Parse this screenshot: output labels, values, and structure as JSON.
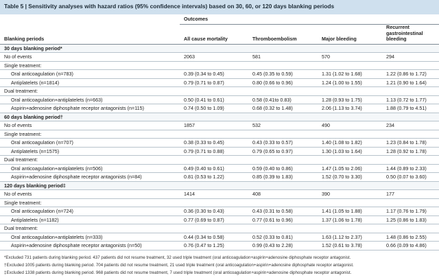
{
  "title": "Table 5 | Sensitivity analyses with hazard ratios (95% confidence intervals) based on 30, 60, or 120 days blanking periods",
  "header": {
    "outcomes_label": "Outcomes",
    "col0": "Blanking periods",
    "col1": "All cause mortality",
    "col2": "Thromboembolism",
    "col3": "Major bleeding",
    "col4": "Recurrent gastrointestinal bleeding"
  },
  "sections": [
    {
      "label": "30 days blanking period*",
      "events": [
        "No of events",
        "2063",
        "581",
        "570",
        "294"
      ],
      "single_label": "Single treatment:",
      "single": [
        [
          "Oral anticoagulation (n=783)",
          "0.39 (0.34 to 0.45)",
          "0.45 (0.35 to 0.59)",
          "1.31 (1.02 to 1.68)",
          "1.22 (0.86 to 1.72)"
        ],
        [
          "Antiplatelets (n=1814)",
          "0.79 (0.71 to 0.87)",
          "0.80 (0.66 to 0.96)",
          "1.24 (1.00 to 1.55)",
          "1.21 (0.90 to 1.64)"
        ]
      ],
      "dual_label": "Dual treatment:",
      "dual": [
        [
          "Oral anticoagulation+antiplatelets (n=663)",
          "0.50 (0.41 to 0.61)",
          "0.58 (0.41to 0.83)",
          "1.28 (0.93 to 1.75)",
          "1.13 (0.72 to 1.77)"
        ],
        [
          "Aspirin+adenosine diphosphate receptor antagonists (n=115)",
          "0.74 (0.50 to 1.09)",
          "0.68 (0.32 to 1.48)",
          "2.06 (1.13 to 3.74)",
          "1.88 (0.79 to 4.51)"
        ]
      ]
    },
    {
      "label": "60 days blanking period†",
      "events": [
        "No of events",
        "1857",
        "532",
        "490",
        "234"
      ],
      "single_label": "Single treatment:",
      "single": [
        [
          "Oral anticoagulation (n=707)",
          "0.38 (0.33 to 0.45)",
          "0.43 (0.33 to 0.57)",
          "1.40 (1.08 to 1.82)",
          "1.23 (0.84 to 1.78)"
        ],
        [
          "Antiplatelets (n=1575)",
          "0.79 (0.71 to 0.88)",
          "0.79 (0.65 to 0.97)",
          "1.30 (1.03 to 1.64)",
          "1.28 (0.92 to 1.78)"
        ]
      ],
      "dual_label": "Dual treatment:",
      "dual": [
        [
          "Oral anticoagulation+antiplatelets (n=506)",
          "0.49 (0.40 to 0.61)",
          "0.59 (0.40 to 0.86)",
          "1.47 (1.05 to 2.06)",
          "1.44 (0.89 to 2.33)"
        ],
        [
          "Aspirin+adenosine diphosphate receptor antagonists (n=84)",
          "0.81 (0.53 to 1.22)",
          "0.85 (0.39 to 1.83)",
          "1.52 (0.70 to 3.30)",
          "0.50 (0.07 to 3.60)"
        ]
      ]
    },
    {
      "label": "120 days blanking period‡",
      "events": [
        "No of events",
        "1414",
        "408",
        "390",
        "177"
      ],
      "single_label": "Single treatment:",
      "single": [
        [
          "Oral anticoagulation (n=724)",
          "0.36 (0.30 to 0.43)",
          "0.43 (0.31 to 0.58)",
          "1.41 (1.05 to 1.88)",
          "1.17 (0.76 to 1.79)"
        ],
        [
          "Antiplatelets (n=1182)",
          "0.77 (0.69 to 0.87)",
          "0.77 (0.61 to 0.96)",
          "1.37 (1.06 to 1.78)",
          "1.25 (0.86 to 1.83)"
        ]
      ],
      "dual_label": "Dual treatment:",
      "dual": [
        [
          "Oral anticoagulation+antiplatelets (n=333)",
          "0.44 (0.34 to 0.58)",
          "0.52 (0.33 to 0.81)",
          "1.63 (1.12 to 2.37)",
          "1.48 (0.86 to 2.55)"
        ],
        [
          "Aspirin+adenosine diphosphate receptor antagonists (n=50)",
          "0.76 (0.47 to 1.25)",
          "0.99 (0.43 to 2.28)",
          "1.52 (0.61 to 3.78)",
          "0.66 (0.09 to 4.86)"
        ]
      ]
    }
  ],
  "footnotes": [
    "*Excluded 731 patients during blanking period. 437 patients did not resume treatment, 32 used triple treatment (oral anticoagulation+aspirin+adenosine diphosphate receptor antagonist.",
    "†Excluded 1005 patients during blanking period. 704 patients did not resume treatment, 21 used triple treatment (oral anticoagulation+aspirin+adenosine diphosphate receptor antagonist.",
    "‡Excluded 1338 patients during blanking period. 968 patients did not resume treatment, 7 used triple treatment (oral anticoagulation+aspirin+adenosine diphosphate receptor antagonist."
  ]
}
